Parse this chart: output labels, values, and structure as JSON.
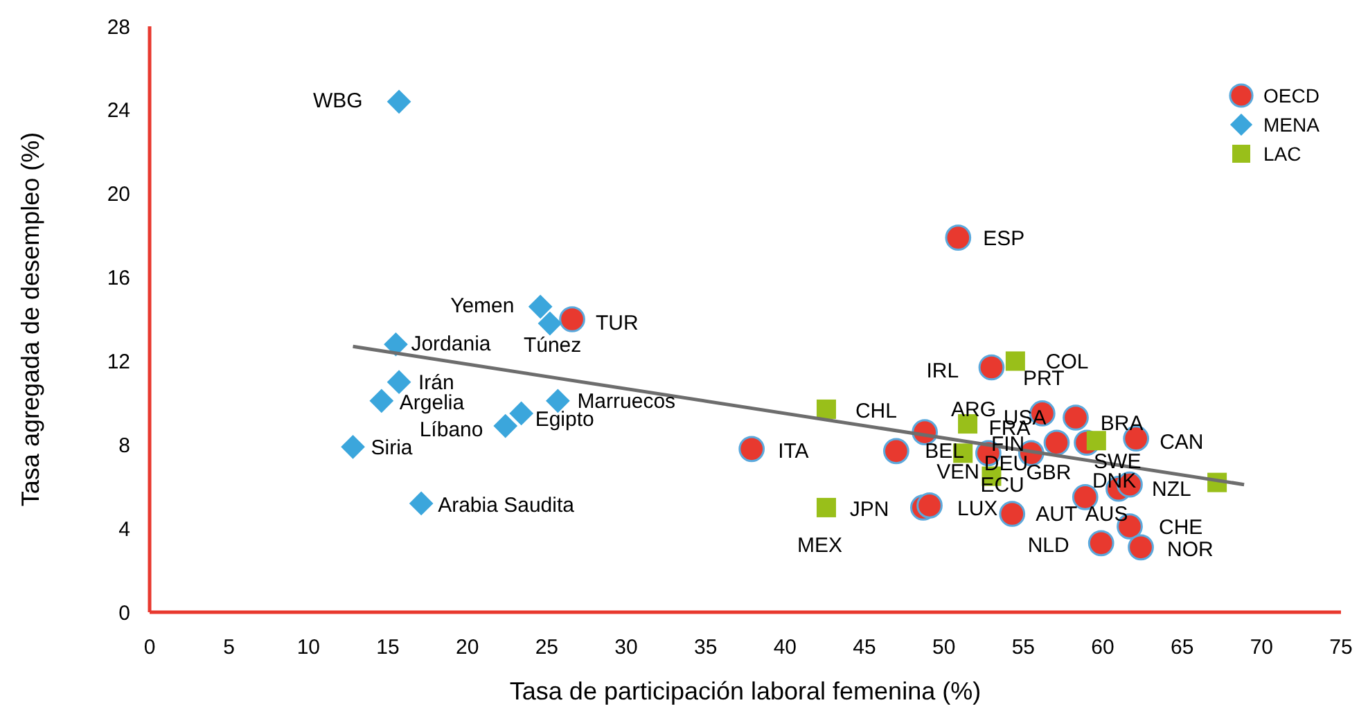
{
  "chart_data": {
    "type": "scatter",
    "xlabel": "Tasa de participación laboral femenina (%)",
    "ylabel": "Tasa agregada de desempleo (%)",
    "xlim": [
      0,
      75
    ],
    "xticks": [
      0,
      5,
      10,
      15,
      20,
      25,
      30,
      35,
      40,
      45,
      50,
      55,
      60,
      65,
      70,
      75
    ],
    "ylim": [
      0,
      28
    ],
    "yticks": [
      0,
      4,
      8,
      12,
      16,
      20,
      24,
      28
    ],
    "grid": false,
    "legend": "top right",
    "series": [
      {
        "name": "OECD",
        "color": "#e8392f",
        "marker": "circle",
        "x": [
          26.6,
          50.9,
          37.9,
          53.0,
          48.8,
          47.0,
          56.2,
          58.3,
          57.1,
          59.0,
          62.1,
          52.8,
          55.5,
          58.9,
          61.0,
          61.7,
          48.7,
          49.1,
          54.3,
          61.7,
          59.9,
          62.4
        ],
        "values": [
          14.0,
          17.9,
          7.8,
          11.7,
          8.6,
          7.7,
          9.5,
          9.3,
          8.1,
          8.1,
          8.3,
          7.6,
          7.6,
          5.5,
          5.9,
          6.1,
          5.0,
          5.1,
          4.7,
          4.1,
          3.3,
          3.1
        ]
      },
      {
        "name": "MENA",
        "color": "#3ba6dc",
        "marker": "diamond",
        "x": [
          15.7,
          24.6,
          25.2,
          15.5,
          15.7,
          14.6,
          25.7,
          23.4,
          22.4,
          12.8,
          17.1
        ],
        "values": [
          24.4,
          14.6,
          13.8,
          12.8,
          11.0,
          10.1,
          10.1,
          9.5,
          8.9,
          7.9,
          5.2
        ]
      },
      {
        "name": "LAC",
        "color": "#99bf1a",
        "marker": "square",
        "x": [
          42.6,
          42.6,
          54.5,
          51.5,
          51.2,
          53.0,
          59.6,
          67.2
        ],
        "values": [
          9.7,
          5.0,
          12.0,
          9.0,
          7.6,
          6.5,
          8.2,
          6.2
        ]
      },
      {
        "type": "line",
        "color": "#6d6d6d",
        "marker": "none",
        "x": [
          12.8,
          68.9
        ],
        "values": [
          12.7,
          6.1
        ]
      }
    ],
    "annotations": [
      {
        "text": "WBG",
        "x": 15.7,
        "y": 24.4
      },
      {
        "text": "Yemen",
        "x": 24.6,
        "y": 14.6
      },
      {
        "text": "Túnez",
        "x": 25.2,
        "y": 13.8
      },
      {
        "text": "TUR",
        "x": 26.6,
        "y": 14.0
      },
      {
        "text": "Jordania",
        "x": 15.5,
        "y": 12.8
      },
      {
        "text": "Irán",
        "x": 15.7,
        "y": 11.0
      },
      {
        "text": "Argelia",
        "x": 14.6,
        "y": 10.1
      },
      {
        "text": "Marruecos",
        "x": 25.7,
        "y": 10.1
      },
      {
        "text": "Egipto",
        "x": 23.4,
        "y": 9.5
      },
      {
        "text": "Líbano",
        "x": 22.4,
        "y": 8.9
      },
      {
        "text": "Siria",
        "x": 12.8,
        "y": 7.9
      },
      {
        "text": "Arabia Saudita",
        "x": 17.1,
        "y": 5.2
      },
      {
        "text": "ESP",
        "x": 50.9,
        "y": 17.9
      },
      {
        "text": "IRL",
        "x": 53.0,
        "y": 11.7
      },
      {
        "text": "COL",
        "x": 54.5,
        "y": 12.0
      },
      {
        "text": "PRT",
        "x": 58.3,
        "y": 9.3
      },
      {
        "text": "CHL",
        "x": 42.6,
        "y": 9.7
      },
      {
        "text": "ARG",
        "x": 51.5,
        "y": 9.0
      },
      {
        "text": "USA",
        "x": 56.2,
        "y": 9.5
      },
      {
        "text": "FRA",
        "x": 57.1,
        "y": 8.1
      },
      {
        "text": "BRA",
        "x": 59.6,
        "y": 8.2
      },
      {
        "text": "CAN",
        "x": 62.1,
        "y": 8.3
      },
      {
        "text": "FIN",
        "x": 52.8,
        "y": 7.6
      },
      {
        "text": "BEL",
        "x": 48.8,
        "y": 8.6
      },
      {
        "text": "ITA",
        "x": 37.9,
        "y": 7.8
      },
      {
        "text": "DEU",
        "x": 55.5,
        "y": 7.6
      },
      {
        "text": "VEN",
        "x": 51.2,
        "y": 7.6
      },
      {
        "text": "GBR",
        "x": 57.1,
        "y": 8.1
      },
      {
        "text": "SWE",
        "x": 59.0,
        "y": 8.1
      },
      {
        "text": "DNK",
        "x": 61.0,
        "y": 5.9
      },
      {
        "text": "NZL",
        "x": 61.7,
        "y": 6.1
      },
      {
        "text": "ECU",
        "x": 53.0,
        "y": 6.5
      },
      {
        "text": "JPN",
        "x": 48.7,
        "y": 5.0
      },
      {
        "text": "LUX",
        "x": 49.1,
        "y": 5.1
      },
      {
        "text": "AUT",
        "x": 54.3,
        "y": 4.7
      },
      {
        "text": "AUS",
        "x": 58.9,
        "y": 5.5
      },
      {
        "text": "MEX",
        "x": 42.6,
        "y": 5.0
      },
      {
        "text": "CHE",
        "x": 61.7,
        "y": 4.1
      },
      {
        "text": "NLD",
        "x": 59.9,
        "y": 3.3
      },
      {
        "text": "NOR",
        "x": 62.4,
        "y": 3.1
      }
    ]
  }
}
